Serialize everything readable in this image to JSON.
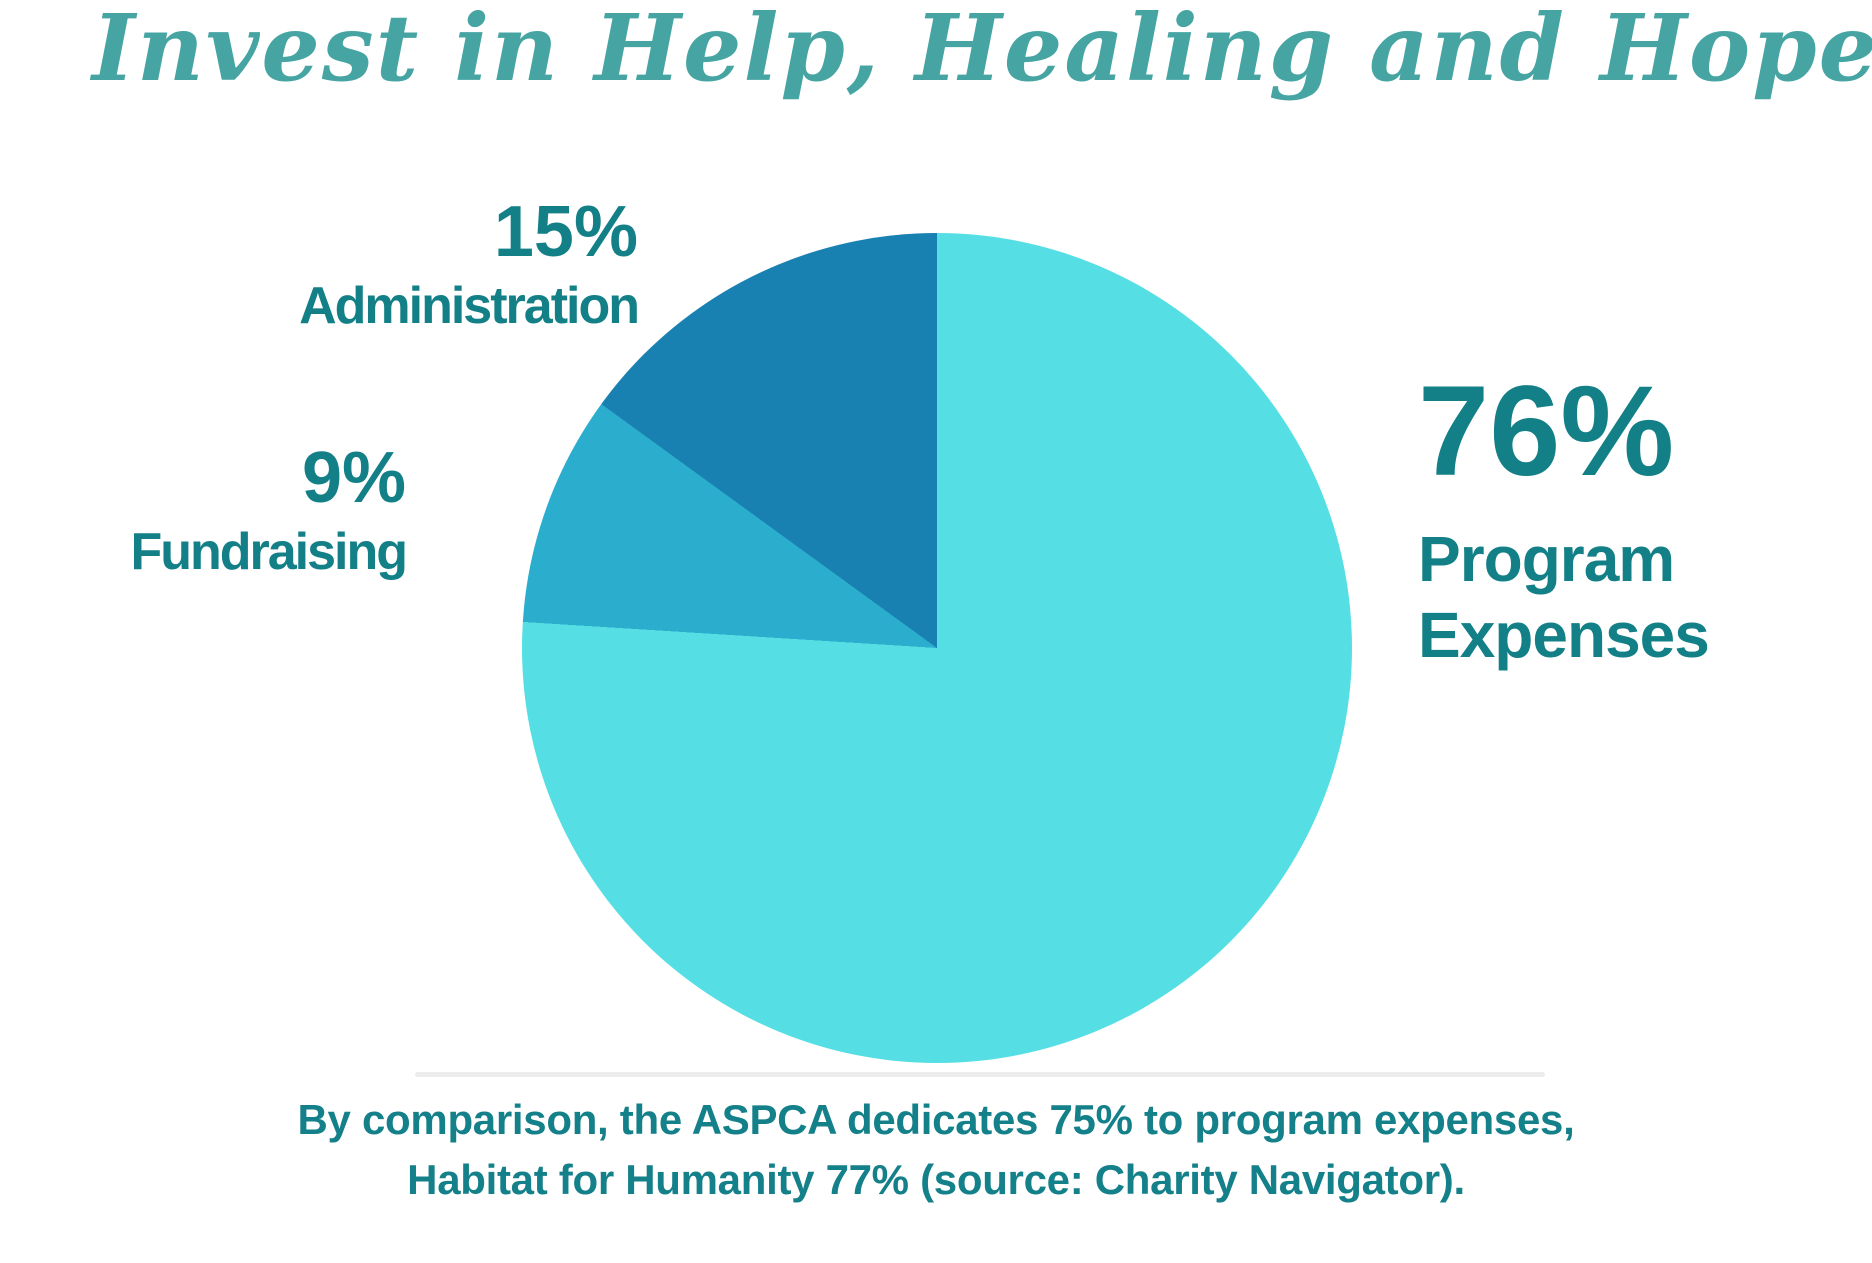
{
  "title": {
    "text": "Invest in Help, Healing and Hope",
    "color": "#46a5a3"
  },
  "chart_data": {
    "type": "pie",
    "title": "Invest in Help, Healing and Hope",
    "start_angle_deg": 0,
    "direction": "clockwise",
    "legend_position": "callout-labels",
    "slices": [
      {
        "label": "Program Expenses",
        "value": 76,
        "color": "#55dfe4"
      },
      {
        "label": "Fundraising",
        "value": 9,
        "color": "#2badcd"
      },
      {
        "label": "Administration",
        "value": 15,
        "color": "#1981b1"
      }
    ],
    "annotation": "By comparison, the ASPCA dedicates 75% to program expenses, Habitat for Humanity 77% (source: Charity Navigator)."
  },
  "labels": {
    "administration": {
      "percent": "15%",
      "name": "Administration"
    },
    "fundraising": {
      "percent": "9%",
      "name": "Fundraising"
    },
    "program": {
      "percent": "76%",
      "name_line1": "Program",
      "name_line2": "Expenses"
    }
  },
  "footer": {
    "line1": "By comparison, the ASPCA dedicates 75% to program expenses,",
    "line2": "Habitat for Humanity 77% (source: Charity Navigator)."
  },
  "colors": {
    "title_teal": "#46a5a3",
    "label_teal": "#138087",
    "footer_teal": "#14808a",
    "slice_program": "#55dfe4",
    "slice_fundraising": "#2badcd",
    "slice_administration": "#1981b1",
    "divider_gray": "#ececec",
    "background": "#ffffff"
  }
}
